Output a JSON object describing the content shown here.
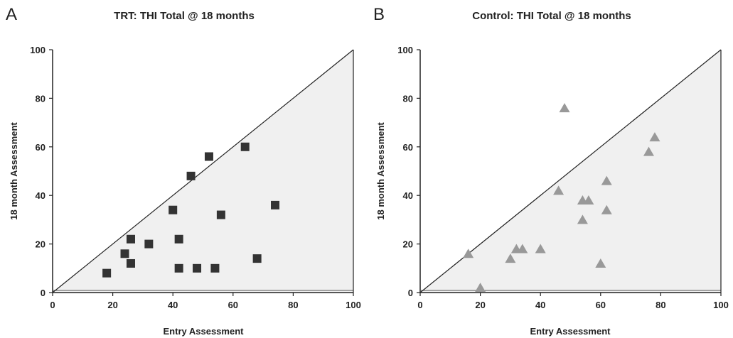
{
  "chart_data": [
    {
      "type": "scatter",
      "panel_label": "A",
      "title": "TRT: THI Total @ 18 months",
      "xlabel": "Entry Assessment",
      "ylabel": "18 month Assessment",
      "xlim": [
        0,
        100
      ],
      "ylim": [
        0,
        100
      ],
      "xticks": [
        "0",
        "20",
        "40",
        "60",
        "80",
        "100"
      ],
      "yticks": [
        "0",
        "20",
        "40",
        "60",
        "80",
        "100"
      ],
      "marker": "square",
      "marker_color": "#333333",
      "region_fill": "#f0f0f0",
      "reference_line": "y = x",
      "grid": false,
      "points": [
        {
          "x": 18,
          "y": 8
        },
        {
          "x": 24,
          "y": 16
        },
        {
          "x": 26,
          "y": 22
        },
        {
          "x": 26,
          "y": 12
        },
        {
          "x": 32,
          "y": 20
        },
        {
          "x": 40,
          "y": 34
        },
        {
          "x": 42,
          "y": 22
        },
        {
          "x": 42,
          "y": 10
        },
        {
          "x": 46,
          "y": 48
        },
        {
          "x": 48,
          "y": 10
        },
        {
          "x": 52,
          "y": 56
        },
        {
          "x": 54,
          "y": 10
        },
        {
          "x": 56,
          "y": 32
        },
        {
          "x": 64,
          "y": 60
        },
        {
          "x": 68,
          "y": 14
        },
        {
          "x": 74,
          "y": 36
        }
      ]
    },
    {
      "type": "scatter",
      "panel_label": "B",
      "title": "Control: THI Total @ 18 months",
      "xlabel": "Entry Assessment",
      "ylabel": "18 month Assessment",
      "xlim": [
        0,
        100
      ],
      "ylim": [
        0,
        100
      ],
      "xticks": [
        "0",
        "20",
        "40",
        "60",
        "80",
        "100"
      ],
      "yticks": [
        "0",
        "20",
        "40",
        "60",
        "80",
        "100"
      ],
      "marker": "triangle",
      "marker_color": "#999999",
      "region_fill": "#f0f0f0",
      "reference_line": "y = x",
      "grid": false,
      "points": [
        {
          "x": 16,
          "y": 16
        },
        {
          "x": 20,
          "y": 2
        },
        {
          "x": 30,
          "y": 14
        },
        {
          "x": 32,
          "y": 18
        },
        {
          "x": 34,
          "y": 18
        },
        {
          "x": 40,
          "y": 18
        },
        {
          "x": 46,
          "y": 42
        },
        {
          "x": 48,
          "y": 76
        },
        {
          "x": 54,
          "y": 38
        },
        {
          "x": 54,
          "y": 30
        },
        {
          "x": 56,
          "y": 38
        },
        {
          "x": 60,
          "y": 12
        },
        {
          "x": 62,
          "y": 46
        },
        {
          "x": 62,
          "y": 34
        },
        {
          "x": 76,
          "y": 58
        },
        {
          "x": 78,
          "y": 64
        }
      ]
    }
  ]
}
